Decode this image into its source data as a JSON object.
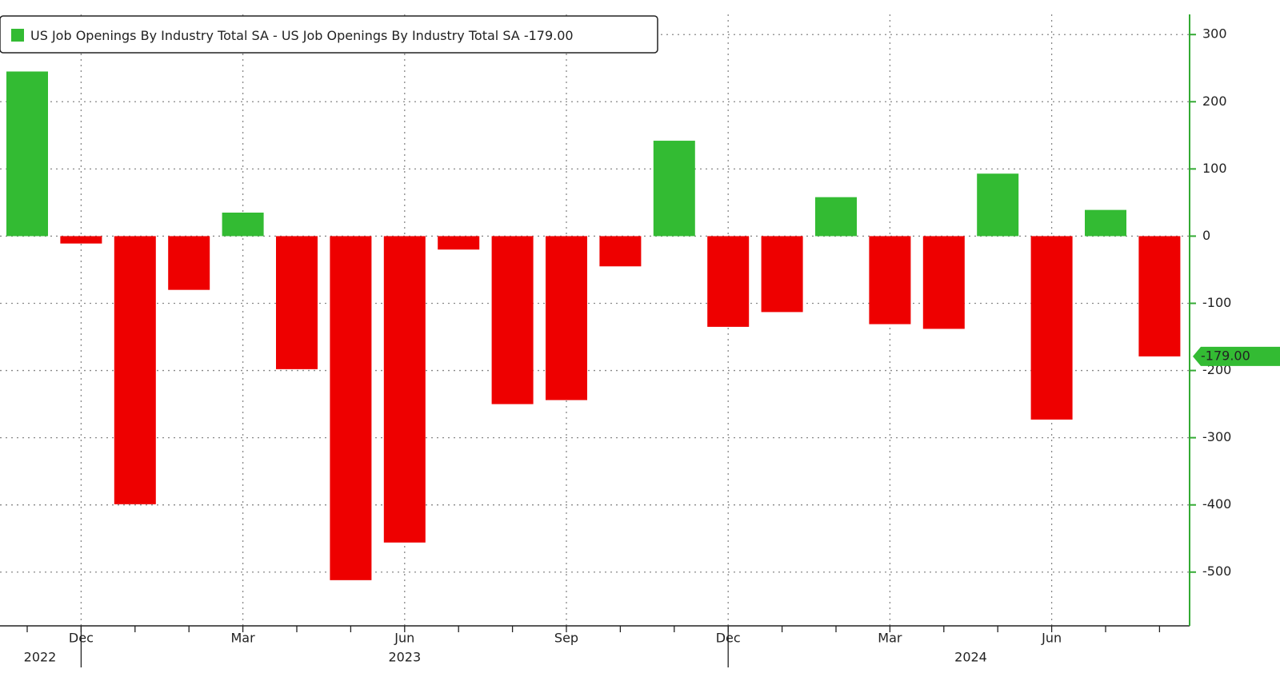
{
  "chart_data": {
    "type": "bar",
    "legend": "US Job Openings By Industry Total SA - US Job Openings By Industry Total SA",
    "last_value_label": "-179.00",
    "categories": [
      null,
      "Dec",
      null,
      null,
      "Mar",
      null,
      null,
      "Jun",
      null,
      null,
      "Sep",
      null,
      null,
      "Dec",
      null,
      null,
      "Mar",
      null,
      null,
      "Jun",
      null,
      null
    ],
    "year_labels": [
      "2022",
      "2023",
      "2024"
    ],
    "values": [
      245,
      -11,
      -399,
      -80,
      35,
      -198,
      -512,
      -456,
      -20,
      -250,
      -244,
      -45,
      142,
      -135,
      -113,
      58,
      -131,
      -138,
      93,
      -273,
      39,
      -179
    ],
    "positive_color": "#33bb33",
    "negative_color": "#ee0000",
    "axis_color": "#33aa33",
    "ylim": [
      -580,
      330
    ],
    "yticks": [
      300,
      200,
      100,
      0,
      -100,
      -200,
      -300,
      -400,
      -500
    ],
    "grid": true
  }
}
